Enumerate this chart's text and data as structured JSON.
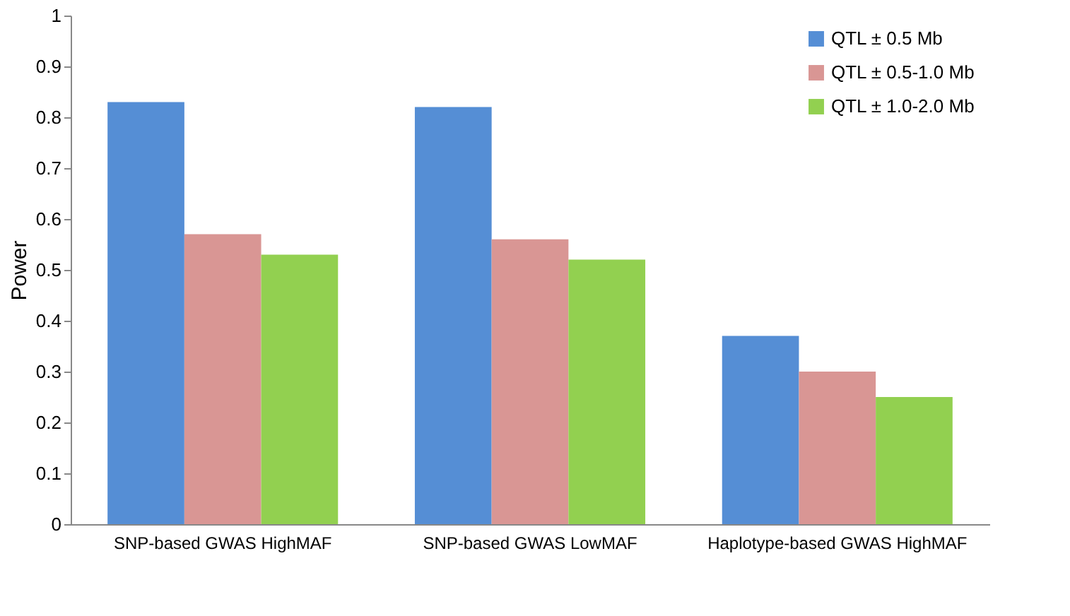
{
  "chart_data": {
    "type": "bar",
    "ylabel": "Power",
    "categories": [
      "SNP-based GWAS HighMAF",
      "SNP-based GWAS LowMAF",
      "Haplotype-based GWAS HighMAF"
    ],
    "series": [
      {
        "name": "QTL ± 0.5 Mb",
        "color": "#558ed5",
        "values": [
          0.83,
          0.82,
          0.37
        ]
      },
      {
        "name": "QTL ± 0.5-1.0 Mb",
        "color": "#d99694",
        "values": [
          0.57,
          0.56,
          0.3
        ]
      },
      {
        "name": "QTL ± 1.0-2.0 Mb",
        "color": "#92d050",
        "values": [
          0.53,
          0.52,
          0.25
        ]
      }
    ],
    "ylim": [
      0,
      1
    ],
    "yticks": [
      0,
      0.1,
      0.2,
      0.3,
      0.4,
      0.5,
      0.6,
      0.7,
      0.8,
      0.9,
      1
    ],
    "grid": false,
    "legend": "top right"
  }
}
